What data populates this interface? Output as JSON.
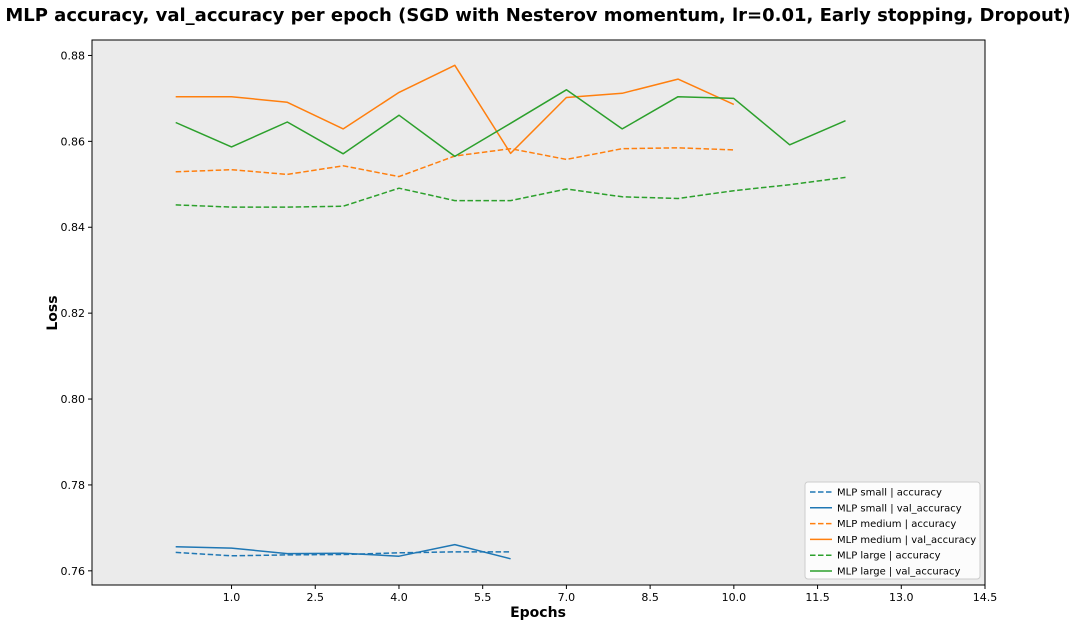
{
  "chart_data": {
    "type": "line",
    "title": "MLP accuracy, val_accuracy per epoch (SGD with Nesterov momentum, lr=0.01, Early stopping, Dropout)",
    "xlabel": "Epochs",
    "ylabel": "Loss",
    "xlim": [
      -1.5,
      14.5
    ],
    "ylim": [
      0.7567,
      0.8836
    ],
    "xticks": [
      1.0,
      2.5,
      4.0,
      5.5,
      7.0,
      8.5,
      10.0,
      11.5,
      13.0,
      14.5
    ],
    "xtick_labels": [
      "1.0",
      "2.5",
      "4.0",
      "5.5",
      "7.0",
      "8.5",
      "10.0",
      "11.5",
      "13.0",
      "14.5"
    ],
    "yticks": [
      0.76,
      0.78,
      0.8,
      0.82,
      0.84,
      0.86,
      0.88
    ],
    "ytick_labels": [
      "0.76",
      "0.78",
      "0.80",
      "0.82",
      "0.84",
      "0.86",
      "0.88"
    ],
    "grid": false,
    "legend_position": "lower-right",
    "background": "#ebebeb",
    "series": [
      {
        "name": "MLP small | accuracy",
        "color": "#1f77b4",
        "dash": "dashed",
        "x": [
          0,
          1,
          2,
          3,
          4,
          5,
          6
        ],
        "y": [
          0.7643,
          0.7635,
          0.7637,
          0.7638,
          0.7642,
          0.7644,
          0.7644
        ]
      },
      {
        "name": "MLP small | val_accuracy",
        "color": "#1f77b4",
        "dash": "solid",
        "x": [
          0,
          1,
          2,
          3,
          4,
          5,
          6
        ],
        "y": [
          0.7656,
          0.7653,
          0.764,
          0.7641,
          0.7634,
          0.7661,
          0.7628
        ]
      },
      {
        "name": "MLP medium | accuracy",
        "color": "#ff7f0e",
        "dash": "dashed",
        "x": [
          0,
          1,
          2,
          3,
          4,
          5,
          6,
          7,
          8,
          9,
          10
        ],
        "y": [
          0.8529,
          0.8534,
          0.8523,
          0.8543,
          0.8518,
          0.8566,
          0.8583,
          0.8558,
          0.8583,
          0.8585,
          0.858
        ]
      },
      {
        "name": "MLP medium | val_accuracy",
        "color": "#ff7f0e",
        "dash": "solid",
        "x": [
          0,
          1,
          2,
          3,
          4,
          5,
          6,
          7,
          8,
          9,
          10
        ],
        "y": [
          0.8704,
          0.8704,
          0.8691,
          0.8629,
          0.8714,
          0.8777,
          0.8572,
          0.8702,
          0.8712,
          0.8745,
          0.8686
        ]
      },
      {
        "name": "MLP large | accuracy",
        "color": "#2ca02c",
        "dash": "dashed",
        "x": [
          0,
          1,
          2,
          3,
          4,
          5,
          6,
          7,
          8,
          9,
          10,
          11,
          12
        ],
        "y": [
          0.8452,
          0.8447,
          0.8447,
          0.8449,
          0.8491,
          0.8462,
          0.8462,
          0.8489,
          0.8471,
          0.8467,
          0.8485,
          0.8499,
          0.8516
        ]
      },
      {
        "name": "MLP large | val_accuracy",
        "color": "#2ca02c",
        "dash": "solid",
        "x": [
          0,
          1,
          2,
          3,
          4,
          5,
          6,
          7,
          8,
          9,
          10,
          11,
          12
        ],
        "y": [
          0.8644,
          0.8587,
          0.8645,
          0.8571,
          0.8661,
          0.8565,
          0.8642,
          0.872,
          0.8629,
          0.8704,
          0.87,
          0.8592,
          0.8648
        ]
      }
    ]
  }
}
